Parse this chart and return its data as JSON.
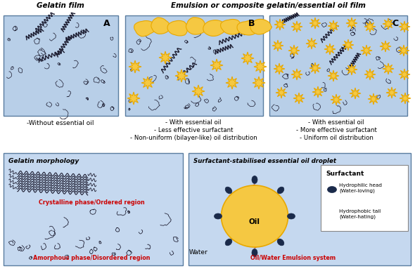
{
  "title_A": "Gelatin film",
  "title_BC": "Emulsion or composite gelatin/essential oil film",
  "label_A": "A",
  "label_B": "B",
  "label_C": "C",
  "caption_A": "-Without essential oil",
  "captions_B": [
    "- With essential oil",
    "- Less effective surfactant",
    "- Non-uniform (bilayer-like) oil distribution"
  ],
  "captions_C": [
    "- With essential oil",
    "- More effective surfactant",
    "- Uniform oil distribution"
  ],
  "box_bg": "#b8cfe8",
  "box_border": "#5a7da0",
  "outer_bg": "#ffffff",
  "yellow_oil": "#f5c842",
  "yellow_oil_dark": "#e8a800",
  "dark_navy": "#1a2a4a",
  "red_color": "#cc2200",
  "gelatin_line": "#1a1a2e",
  "bottom_left_title": "Gelatin morphology",
  "bottom_right_title": "Surfactant-stabilised essential oil droplet",
  "crystalline_label": "Crystalline phase/Ordered region",
  "amorphous_label": "Amorphous phase/Disordered region",
  "surfactant_label": "Surfactant",
  "hydrophilic_label": "Hydrophilic head\n(Water-loving)",
  "hydrophobic_label": "Hydrophobic tail\n(Water-hating)",
  "oil_label": "Oil",
  "water_label": "Water",
  "emulsion_label": "Oil/Water Emulsion system"
}
